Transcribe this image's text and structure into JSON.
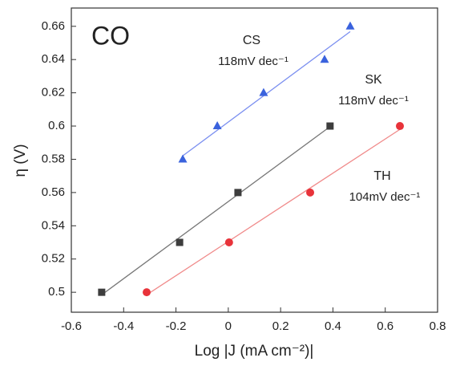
{
  "chart_data": {
    "type": "scatter",
    "xlabel": "Log |J (mA cm⁻²)|",
    "ylabel": "η (V)",
    "annotations": [
      "CO",
      "CS",
      "118mV dec⁻¹",
      "SK",
      "118mV dec⁻¹",
      "TH",
      "104mV dec⁻¹"
    ],
    "xlim": [
      -0.6,
      0.8
    ],
    "ylim": [
      0.488,
      0.671
    ],
    "xticks": [
      -0.6,
      -0.4,
      -0.2,
      0,
      0.2,
      0.4,
      0.6,
      0.8
    ],
    "yticks": [
      0.5,
      0.52,
      0.54,
      0.56,
      0.58,
      0.6,
      0.62,
      0.64,
      0.66
    ],
    "series": [
      {
        "name": "CS",
        "marker": "triangle",
        "color": "#3a62dd",
        "line_color": "#7b8ff0",
        "x": [
          -0.174,
          -0.042,
          0.135,
          0.368,
          0.466
        ],
        "values": [
          0.58,
          0.6,
          0.62,
          0.64,
          0.66
        ]
      },
      {
        "name": "SK",
        "marker": "square",
        "color": "#3d3d3d",
        "line_color": "#777777",
        "x": [
          -0.484,
          -0.186,
          0.037,
          0.389
        ],
        "values": [
          0.5,
          0.53,
          0.56,
          0.6
        ]
      },
      {
        "name": "TH",
        "marker": "circle",
        "color": "#e8333a",
        "line_color": "#f08a8a",
        "x": [
          -0.312,
          0.003,
          0.313,
          0.656
        ],
        "values": [
          0.5,
          0.53,
          0.56,
          0.6
        ]
      }
    ]
  }
}
